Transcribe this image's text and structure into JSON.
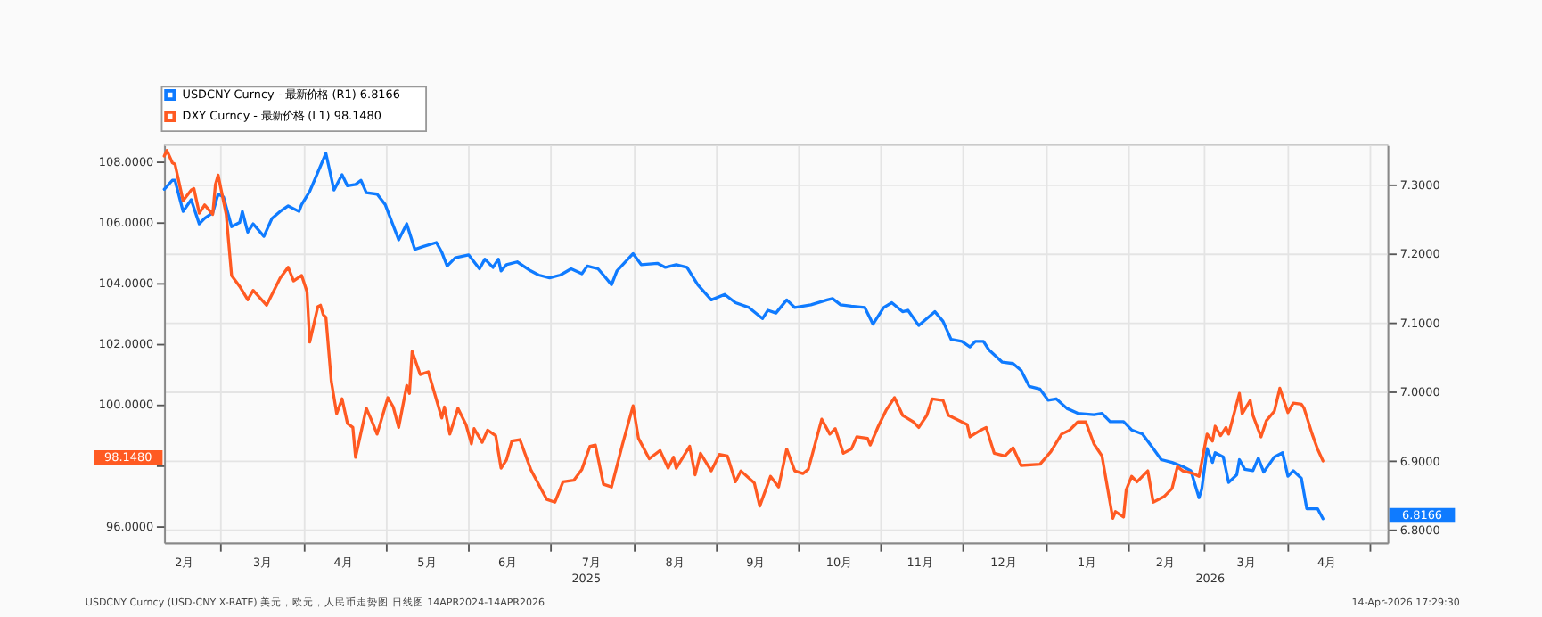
{
  "chart_data": {
    "type": "line",
    "legend": "top left",
    "grid": true,
    "xlim": [
      "2025-02-08",
      "2026-05-08"
    ],
    "xticks": [
      {
        "value": "2025-02-15",
        "label": "2月"
      },
      {
        "value": "2025-03-01",
        "label": null
      },
      {
        "value": "2025-03-16",
        "label": "3月"
      },
      {
        "value": "2025-04-01",
        "label": null
      },
      {
        "value": "2025-04-15",
        "label": "4月"
      },
      {
        "value": "2025-05-01",
        "label": null
      },
      {
        "value": "2025-05-16",
        "label": "5月"
      },
      {
        "value": "2025-06-01",
        "label": null
      },
      {
        "value": "2025-06-15",
        "label": "6月"
      },
      {
        "value": "2025-07-01",
        "label": null
      },
      {
        "value": "2025-07-16",
        "label": "7月"
      },
      {
        "value": "2025-08-01",
        "label": null
      },
      {
        "value": "2025-08-16",
        "label": "8月"
      },
      {
        "value": "2025-09-01",
        "label": null
      },
      {
        "value": "2025-09-15",
        "label": "9月"
      },
      {
        "value": "2025-10-01",
        "label": null
      },
      {
        "value": "2025-10-16",
        "label": "10月"
      },
      {
        "value": "2025-11-01",
        "label": null
      },
      {
        "value": "2025-11-15",
        "label": "11月"
      },
      {
        "value": "2025-12-01",
        "label": null
      },
      {
        "value": "2025-12-16",
        "label": "12月"
      },
      {
        "value": "2026-01-01",
        "label": null
      },
      {
        "value": "2026-01-16",
        "label": "1月"
      },
      {
        "value": "2026-02-01",
        "label": null
      },
      {
        "value": "2026-02-14",
        "label": "2月"
      },
      {
        "value": "2026-03-01",
        "label": null
      },
      {
        "value": "2026-03-16",
        "label": "3月"
      },
      {
        "value": "2026-04-01",
        "label": null
      },
      {
        "value": "2026-04-15",
        "label": "4月"
      },
      {
        "value": "2026-05-01",
        "label": null
      }
    ],
    "ylim": [
      95.46,
      108.54
    ],
    "yticks": [
      {
        "value": 96,
        "label": "96.0000"
      },
      {
        "value": 98,
        "label": null
      },
      {
        "value": 100,
        "label": "100.0000"
      },
      {
        "value": 102,
        "label": "102.0000"
      },
      {
        "value": 104,
        "label": "104.0000"
      },
      {
        "value": 106,
        "label": "106.0000"
      },
      {
        "value": 108,
        "label": "108.0000"
      }
    ],
    "y2lim": [
      6.782,
      7.357
    ],
    "y2ticks": [
      {
        "value": 6.8,
        "label": "6.8000"
      },
      {
        "value": 6.9,
        "label": "6.9000"
      },
      {
        "value": 7.0,
        "label": "7.0000"
      },
      {
        "value": 7.1,
        "label": "7.1000"
      },
      {
        "value": 7.2,
        "label": "7.2000"
      },
      {
        "value": 7.3,
        "label": "7.3000"
      }
    ],
    "annotations": [
      "2025",
      "2026",
      "6.8166",
      "98.1480",
      "USDCNY Curncy (USD-CNY X-RATE) 美元，欧元，人民币走势图 日线图 14APR2024-14APR2026",
      "14-Apr-2026 17:29:30"
    ],
    "series": [
      {
        "name": "USDCNY Curncy - 最新价格 (R1)      6.8166",
        "color": "#0f7bff",
        "axis": "y2",
        "x": [
          "2025-02-08",
          "2025-02-11",
          "2025-02-12",
          "2025-02-15",
          "2025-02-18",
          "2025-02-21",
          "2025-02-23",
          "2025-02-26",
          "2025-02-28",
          "2025-03-02",
          "2025-03-05",
          "2025-03-08",
          "2025-03-09",
          "2025-03-11",
          "2025-03-13",
          "2025-03-17",
          "2025-03-20",
          "2025-03-23",
          "2025-03-26",
          "2025-03-30",
          "2025-03-31",
          "2025-04-03",
          "2025-04-09",
          "2025-04-12",
          "2025-04-15",
          "2025-04-17",
          "2025-04-20",
          "2025-04-22",
          "2025-04-24",
          "2025-04-28",
          "2025-05-01",
          "2025-05-06",
          "2025-05-09",
          "2025-05-12",
          "2025-05-15",
          "2025-05-20",
          "2025-05-22",
          "2025-05-24",
          "2025-05-27",
          "2025-06-01",
          "2025-06-05",
          "2025-06-07",
          "2025-06-10",
          "2025-06-12",
          "2025-06-13",
          "2025-06-15",
          "2025-06-19",
          "2025-06-24",
          "2025-06-27",
          "2025-07-01",
          "2025-07-05",
          "2025-07-09",
          "2025-07-13",
          "2025-07-15",
          "2025-07-19",
          "2025-07-21",
          "2025-07-24",
          "2025-07-26",
          "2025-08-01",
          "2025-08-04",
          "2025-08-10",
          "2025-08-13",
          "2025-08-17",
          "2025-08-21",
          "2025-08-25",
          "2025-08-30",
          "2025-09-04",
          "2025-09-08",
          "2025-09-13",
          "2025-09-18",
          "2025-09-20",
          "2025-09-23",
          "2025-09-27",
          "2025-09-30",
          "2025-10-06",
          "2025-10-12",
          "2025-10-14",
          "2025-10-17",
          "2025-10-21",
          "2025-10-26",
          "2025-10-29",
          "2025-11-02",
          "2025-11-05",
          "2025-11-09",
          "2025-11-11",
          "2025-11-15",
          "2025-11-18",
          "2025-11-21",
          "2025-11-24",
          "2025-11-27",
          "2025-12-01",
          "2025-12-04",
          "2025-12-06",
          "2025-12-09",
          "2025-12-11",
          "2025-12-16",
          "2025-12-20",
          "2025-12-23",
          "2025-12-26",
          "2025-12-30",
          "2026-01-02",
          "2026-01-05",
          "2026-01-09",
          "2026-01-13",
          "2026-01-19",
          "2026-01-22",
          "2026-01-25",
          "2026-01-30",
          "2026-02-02",
          "2026-02-06",
          "2026-02-10",
          "2026-02-13",
          "2026-02-17",
          "2026-02-21",
          "2026-02-24",
          "2026-02-27",
          "2026-02-28",
          "2026-03-02",
          "2026-03-04",
          "2026-03-05",
          "2026-03-08",
          "2026-03-10",
          "2026-03-13",
          "2026-03-14",
          "2026-03-16",
          "2026-03-19",
          "2026-03-21",
          "2026-03-23",
          "2026-03-27",
          "2026-03-30",
          "2026-04-01",
          "2026-04-03",
          "2026-04-06",
          "2026-04-08",
          "2026-04-12",
          "2026-04-14"
        ],
        "values": [
          7.293,
          7.306,
          7.306,
          7.261,
          7.278,
          7.243,
          7.251,
          7.259,
          7.286,
          7.282,
          7.239,
          7.245,
          7.261,
          7.231,
          7.243,
          7.225,
          7.251,
          7.261,
          7.269,
          7.261,
          7.271,
          7.29,
          7.345,
          7.292,
          7.314,
          7.298,
          7.3,
          7.306,
          7.288,
          7.286,
          7.271,
          7.22,
          7.243,
          7.206,
          7.21,
          7.216,
          7.202,
          7.182,
          7.194,
          7.198,
          7.178,
          7.192,
          7.18,
          7.192,
          7.175,
          7.184,
          7.188,
          7.175,
          7.169,
          7.165,
          7.169,
          7.178,
          7.171,
          7.182,
          7.178,
          7.169,
          7.155,
          7.175,
          7.2,
          7.184,
          7.186,
          7.18,
          7.184,
          7.18,
          7.155,
          7.133,
          7.141,
          7.129,
          7.122,
          7.106,
          7.118,
          7.114,
          7.133,
          7.122,
          7.126,
          7.133,
          7.135,
          7.126,
          7.124,
          7.122,
          7.098,
          7.122,
          7.129,
          7.116,
          7.118,
          7.096,
          7.106,
          7.116,
          7.102,
          7.076,
          7.073,
          7.065,
          7.073,
          7.073,
          7.061,
          7.043,
          7.041,
          7.031,
          7.008,
          7.004,
          6.988,
          6.99,
          6.976,
          6.969,
          6.967,
          6.969,
          6.957,
          6.957,
          6.945,
          6.939,
          6.918,
          6.902,
          6.898,
          6.892,
          6.886,
          6.847,
          6.859,
          6.918,
          6.898,
          6.912,
          6.906,
          6.869,
          6.88,
          6.902,
          6.888,
          6.886,
          6.904,
          6.884,
          6.906,
          6.912,
          6.878,
          6.886,
          6.875,
          6.831,
          6.831,
          6.8166
        ]
      },
      {
        "name": "DXY Curncy - 最新价格 (L1)      98.1480",
        "color": "#ff5a22",
        "axis": "y",
        "x": [
          "2025-02-08",
          "2025-02-09",
          "2025-02-11",
          "2025-02-12",
          "2025-02-15",
          "2025-02-18",
          "2025-02-19",
          "2025-02-21",
          "2025-02-23",
          "2025-02-26",
          "2025-02-27",
          "2025-02-28",
          "2025-03-03",
          "2025-03-05",
          "2025-03-08",
          "2025-03-11",
          "2025-03-13",
          "2025-03-18",
          "2025-03-23",
          "2025-03-26",
          "2025-03-28",
          "2025-03-31",
          "2025-04-02",
          "2025-04-03",
          "2025-04-06",
          "2025-04-07",
          "2025-04-08",
          "2025-04-09",
          "2025-04-11",
          "2025-04-13",
          "2025-04-15",
          "2025-04-17",
          "2025-04-19",
          "2025-04-20",
          "2025-04-24",
          "2025-04-26",
          "2025-04-28",
          "2025-05-02",
          "2025-05-04",
          "2025-05-06",
          "2025-05-09",
          "2025-05-10",
          "2025-05-11",
          "2025-05-14",
          "2025-05-17",
          "2025-05-22",
          "2025-05-23",
          "2025-05-25",
          "2025-05-28",
          "2025-05-31",
          "2025-06-02",
          "2025-06-03",
          "2025-06-06",
          "2025-06-08",
          "2025-06-11",
          "2025-06-13",
          "2025-06-15",
          "2025-06-17",
          "2025-06-20",
          "2025-06-24",
          "2025-06-28",
          "2025-06-30",
          "2025-07-03",
          "2025-07-06",
          "2025-07-10",
          "2025-07-13",
          "2025-07-16",
          "2025-07-18",
          "2025-07-21",
          "2025-07-24",
          "2025-07-28",
          "2025-08-01",
          "2025-08-03",
          "2025-08-07",
          "2025-08-11",
          "2025-08-14",
          "2025-08-16",
          "2025-08-17",
          "2025-08-22",
          "2025-08-24",
          "2025-08-26",
          "2025-08-30",
          "2025-09-02",
          "2025-09-05",
          "2025-09-08",
          "2025-09-10",
          "2025-09-15",
          "2025-09-17",
          "2025-09-21",
          "2025-09-24",
          "2025-09-27",
          "2025-09-30",
          "2025-10-03",
          "2025-10-05",
          "2025-10-10",
          "2025-10-13",
          "2025-10-15",
          "2025-10-18",
          "2025-10-21",
          "2025-10-23",
          "2025-10-27",
          "2025-10-28",
          "2025-10-31",
          "2025-11-03",
          "2025-11-06",
          "2025-11-09",
          "2025-11-13",
          "2025-11-15",
          "2025-11-18",
          "2025-11-20",
          "2025-11-24",
          "2025-11-26",
          "2025-12-03",
          "2025-12-04",
          "2025-12-08",
          "2025-12-10",
          "2025-12-13",
          "2025-12-17",
          "2025-12-20",
          "2025-12-23",
          "2025-12-30",
          "2026-01-03",
          "2026-01-07",
          "2026-01-10",
          "2026-01-13",
          "2026-01-16",
          "2026-01-19",
          "2026-01-22",
          "2026-01-26",
          "2026-01-27",
          "2026-01-30",
          "2026-01-31",
          "2026-02-02",
          "2026-02-04",
          "2026-02-08",
          "2026-02-10",
          "2026-02-14",
          "2026-02-17",
          "2026-02-19",
          "2026-02-21",
          "2026-02-25",
          "2026-02-27",
          "2026-03-02",
          "2026-03-04",
          "2026-03-05",
          "2026-03-07",
          "2026-03-09",
          "2026-03-10",
          "2026-03-14",
          "2026-03-15",
          "2026-03-18",
          "2026-03-19",
          "2026-03-22",
          "2026-03-24",
          "2026-03-27",
          "2026-03-29",
          "2026-04-01",
          "2026-04-03",
          "2026-04-06",
          "2026-04-07",
          "2026-04-10",
          "2026-04-12",
          "2026-04-14"
        ],
        "values": [
          108.18,
          108.36,
          107.96,
          107.91,
          106.71,
          107.06,
          107.11,
          106.3,
          106.57,
          106.26,
          107.24,
          107.55,
          106.26,
          104.25,
          103.89,
          103.45,
          103.76,
          103.27,
          104.16,
          104.52,
          104.07,
          104.25,
          103.71,
          102.06,
          103.22,
          103.27,
          102.96,
          102.87,
          100.77,
          99.7,
          100.19,
          99.38,
          99.25,
          98.27,
          99.88,
          99.47,
          99.03,
          100.23,
          99.92,
          99.25,
          100.63,
          100.37,
          101.75,
          100.99,
          101.08,
          99.56,
          99.92,
          99.03,
          99.88,
          99.34,
          98.71,
          99.21,
          98.76,
          99.16,
          98.98,
          97.91,
          98.18,
          98.8,
          98.85,
          97.87,
          97.2,
          96.88,
          96.79,
          97.46,
          97.51,
          97.87,
          98.63,
          98.67,
          97.38,
          97.29,
          98.67,
          99.96,
          98.89,
          98.22,
          98.49,
          97.91,
          98.27,
          97.91,
          98.63,
          97.69,
          98.4,
          97.82,
          98.36,
          98.31,
          97.46,
          97.82,
          97.42,
          96.66,
          97.64,
          97.29,
          98.54,
          97.82,
          97.73,
          97.87,
          99.52,
          99.03,
          99.21,
          98.4,
          98.54,
          98.94,
          98.89,
          98.67,
          99.29,
          99.83,
          100.23,
          99.65,
          99.43,
          99.25,
          99.65,
          100.19,
          100.14,
          99.65,
          99.34,
          98.94,
          99.16,
          99.25,
          98.4,
          98.31,
          98.58,
          98.0,
          98.04,
          98.45,
          99.03,
          99.16,
          99.43,
          99.43,
          98.71,
          98.31,
          96.26,
          96.48,
          96.3,
          97.2,
          97.64,
          97.46,
          97.82,
          96.79,
          96.97,
          97.24,
          97.96,
          97.82,
          97.73,
          97.64,
          99.03,
          98.8,
          99.29,
          98.98,
          99.25,
          99.03,
          100.37,
          99.7,
          100.14,
          99.65,
          98.94,
          99.47,
          99.79,
          100.54,
          99.74,
          100.05,
          100.01,
          99.88,
          99.03,
          98.54,
          98.148
        ]
      }
    ]
  }
}
